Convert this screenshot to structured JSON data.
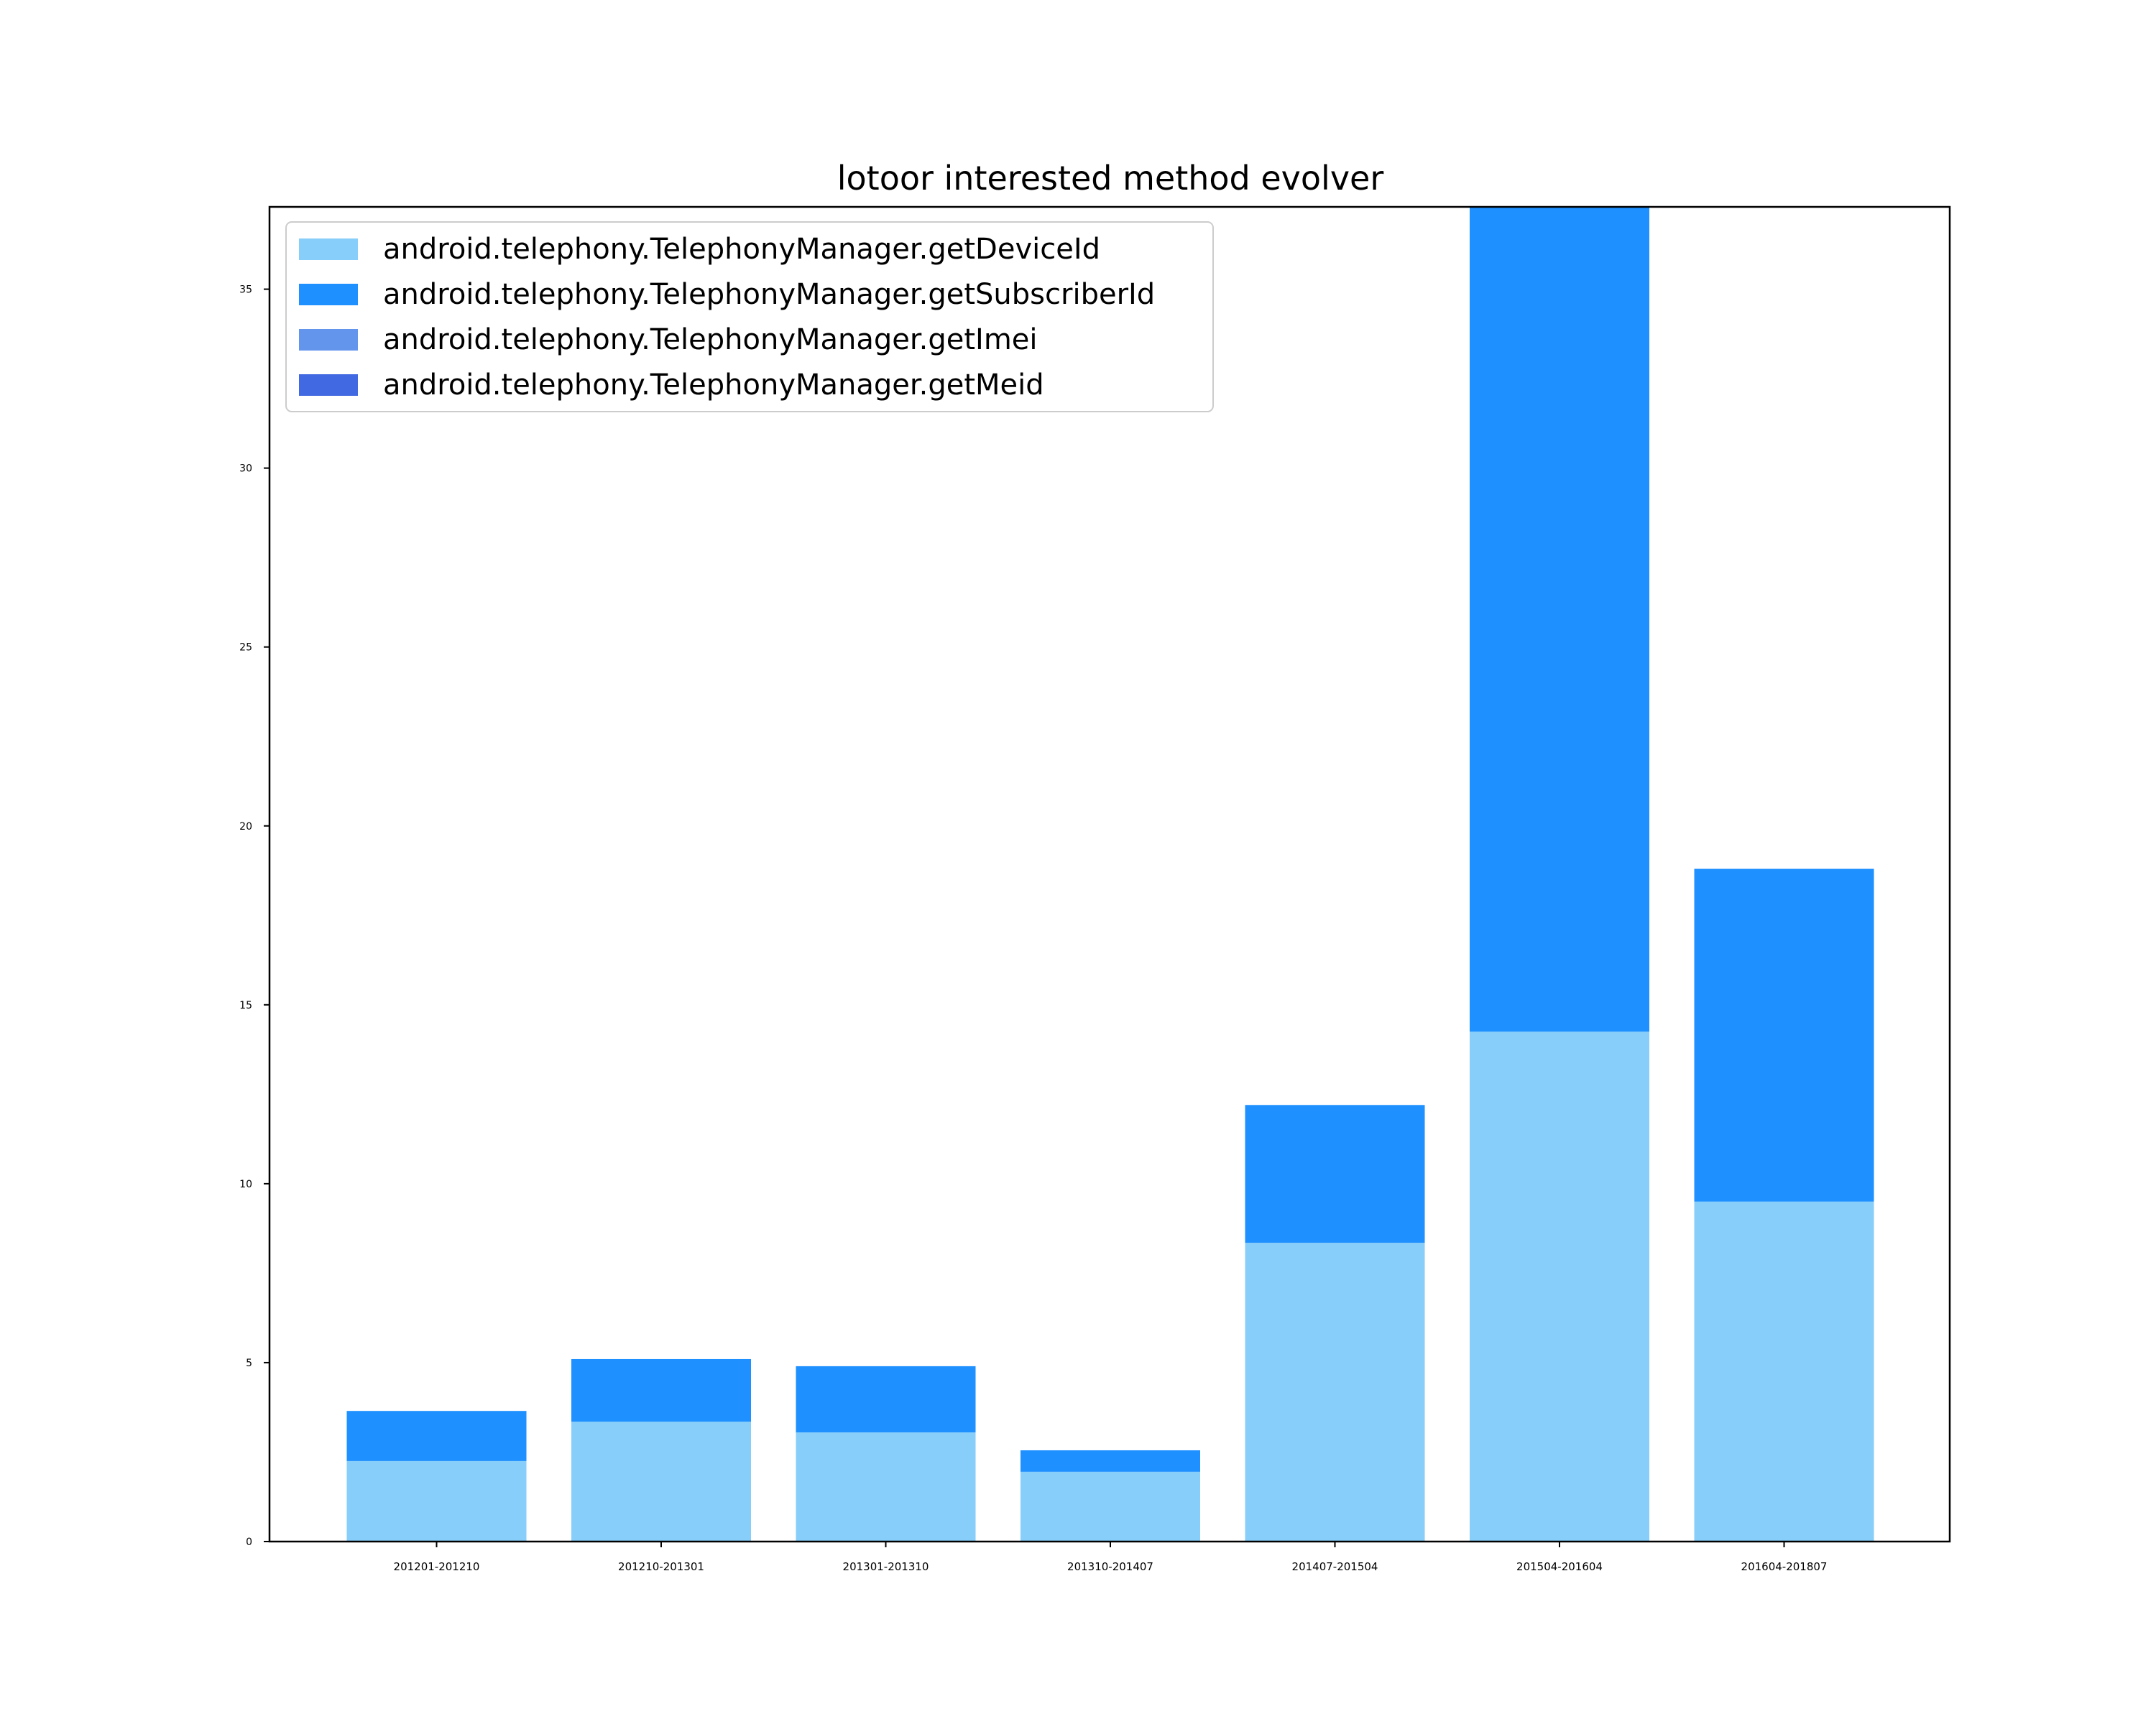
{
  "chart_data": {
    "type": "bar",
    "stacked": true,
    "title": "lotoor interested method evolver",
    "xlabel": "",
    "ylabel": "",
    "ylim": [
      0,
      37.3
    ],
    "yticks": [
      0,
      5,
      10,
      15,
      20,
      25,
      30,
      35
    ],
    "grid": false,
    "legend_position": "top-left",
    "categories": [
      "201201-201210",
      "201210-201301",
      "201301-201310",
      "201310-201407",
      "201407-201504",
      "201504-201604",
      "201604-201807"
    ],
    "series": [
      {
        "name": "android.telephony.TelephonyManager.getDeviceId",
        "color": "#87CEFA",
        "values": [
          2.25,
          3.35,
          3.05,
          1.95,
          8.35,
          14.25,
          9.5
        ]
      },
      {
        "name": "android.telephony.TelephonyManager.getSubscriberId",
        "color": "#1E90FF",
        "values": [
          1.4,
          1.75,
          1.85,
          0.6,
          3.85,
          23.05,
          9.3
        ]
      },
      {
        "name": "android.telephony.TelephonyManager.getImei",
        "color": "#6495ED",
        "values": [
          0,
          0,
          0,
          0,
          0,
          0,
          0
        ]
      },
      {
        "name": "android.telephony.TelephonyManager.getMeid",
        "color": "#4169E1",
        "values": [
          0,
          0,
          0,
          0,
          0,
          0,
          0
        ]
      }
    ]
  }
}
